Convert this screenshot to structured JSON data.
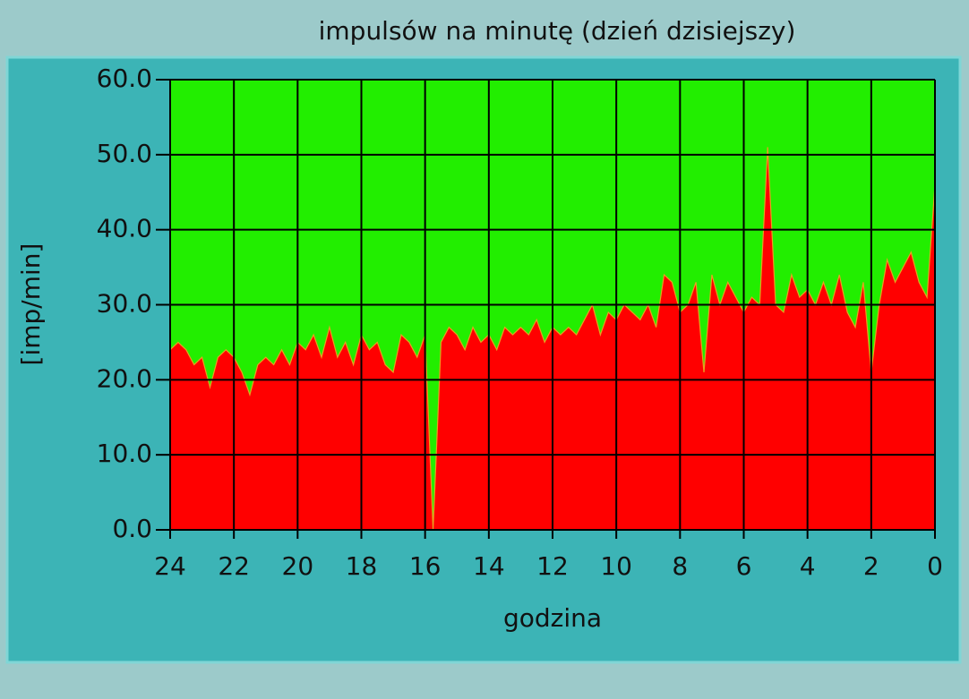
{
  "chart_data": {
    "type": "area",
    "title": "impulsów na minutę (dzień dzisiejszy)",
    "x_label": "godzina",
    "y_label": "[imp/min]",
    "color": "#ff0000",
    "plot_background": "#22ee00",
    "grid": true,
    "xlim": [
      24,
      0
    ],
    "ylim": [
      0,
      60
    ],
    "xticks": [
      24,
      22,
      20,
      18,
      16,
      14,
      12,
      10,
      8,
      6,
      4,
      2,
      0
    ],
    "yticks": [
      {
        "value": 0,
        "label": "0.0"
      },
      {
        "value": 10,
        "label": "10.0"
      },
      {
        "value": 20,
        "label": "20.0"
      },
      {
        "value": 30,
        "label": "30.0"
      },
      {
        "value": 40,
        "label": "40.0"
      },
      {
        "value": 50,
        "label": "50.0"
      },
      {
        "value": 60,
        "label": "60.0"
      }
    ],
    "x": [
      24,
      23.75,
      23.5,
      23.25,
      23,
      22.75,
      22.5,
      22.25,
      22,
      21.75,
      21.5,
      21.25,
      21,
      20.75,
      20.5,
      20.25,
      20,
      19.75,
      19.5,
      19.25,
      19,
      18.75,
      18.5,
      18.25,
      18,
      17.75,
      17.5,
      17.25,
      17,
      16.75,
      16.5,
      16.25,
      16,
      15.75,
      15.5,
      15.25,
      15,
      14.75,
      14.5,
      14.25,
      14,
      13.75,
      13.5,
      13.25,
      13,
      12.75,
      12.5,
      12.25,
      12,
      11.75,
      11.5,
      11.25,
      11,
      10.75,
      10.5,
      10.25,
      10,
      9.75,
      9.5,
      9.25,
      9,
      8.75,
      8.5,
      8.25,
      8,
      7.75,
      7.5,
      7.25,
      7,
      6.75,
      6.5,
      6.25,
      6,
      5.75,
      5.5,
      5.25,
      5,
      4.75,
      4.5,
      4.25,
      4,
      3.75,
      3.5,
      3.25,
      3,
      2.75,
      2.5,
      2.25,
      2,
      1.75,
      1.5,
      1.25,
      1,
      0.75,
      0.5,
      0.25,
      0
    ],
    "values": [
      24,
      25,
      24,
      22,
      23,
      19,
      23,
      24,
      23,
      21,
      18,
      22,
      23,
      22,
      24,
      22,
      25,
      24,
      26,
      23,
      27,
      23,
      25,
      22,
      26,
      24,
      25,
      22,
      21,
      26,
      25,
      23,
      26,
      0,
      25,
      27,
      26,
      24,
      27,
      25,
      26,
      24,
      27,
      26,
      27,
      26,
      28,
      25,
      27,
      26,
      27,
      26,
      28,
      30,
      26,
      29,
      28,
      30,
      29,
      28,
      30,
      27,
      34,
      33,
      29,
      30,
      33,
      21,
      34,
      30,
      33,
      31,
      29,
      31,
      30,
      51,
      30,
      29,
      34,
      31,
      32,
      30,
      33,
      30,
      34,
      29,
      27,
      33,
      21,
      30,
      36,
      33,
      35,
      37,
      33,
      31,
      46
    ]
  }
}
